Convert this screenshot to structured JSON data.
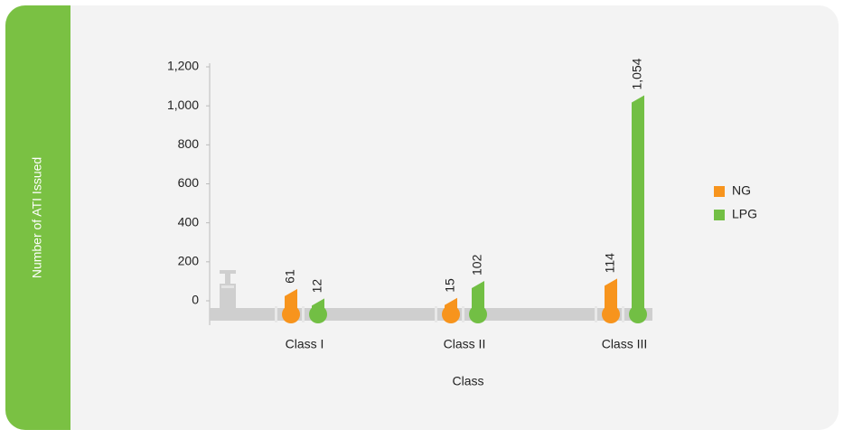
{
  "chart_data": {
    "type": "bar",
    "y_label": "Number of ATI Issued",
    "x_label": "Class",
    "categories": [
      "Class I",
      "Class II",
      "Class III"
    ],
    "series": [
      {
        "name": "NG",
        "color": "#f7941d",
        "values": [
          61,
          15,
          114
        ]
      },
      {
        "name": "LPG",
        "color": "#72bf44",
        "values": [
          12,
          102,
          1054
        ],
        "value_labels": [
          "12",
          "102",
          "1,054"
        ]
      }
    ],
    "ylim": [
      0,
      1200
    ],
    "yticks": [
      0,
      200,
      400,
      600,
      800,
      {
        "value": 1000,
        "label": "1,000"
      },
      {
        "value": 1200,
        "label": "1,200"
      }
    ],
    "legend": "right"
  }
}
